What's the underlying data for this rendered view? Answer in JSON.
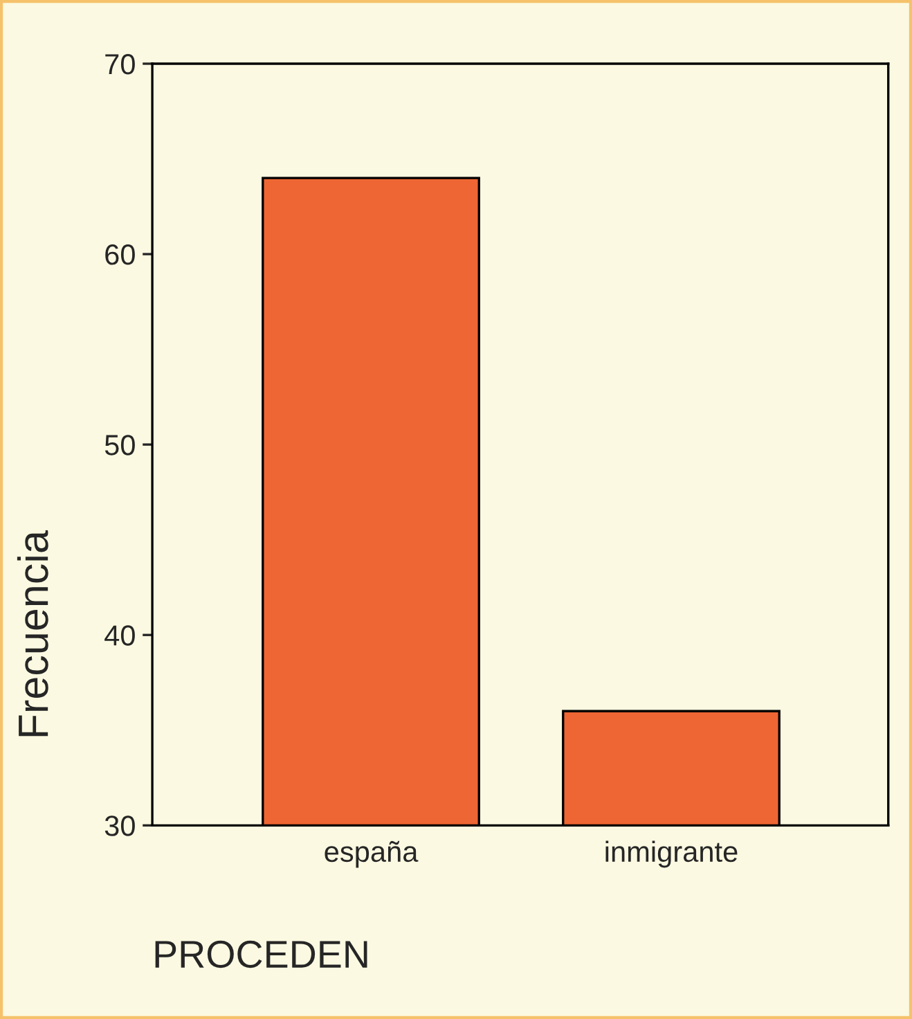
{
  "chart_data": {
    "type": "bar",
    "xlabel": "PROCEDEN",
    "ylabel": "Frecuencia",
    "categories": [
      "españa",
      "inmigrante"
    ],
    "values": [
      64,
      36
    ],
    "color": "#ee6633",
    "ylim": [
      30,
      70
    ],
    "yticks": [
      30,
      40,
      50,
      60,
      70
    ],
    "grid": false,
    "legend": false
  }
}
